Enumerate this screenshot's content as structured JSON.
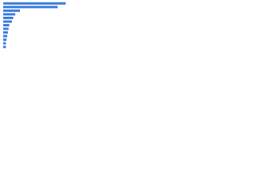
{
  "chart_data": {
    "type": "bar",
    "orientation": "horizontal",
    "categories": [
      null,
      null,
      null,
      null,
      null,
      null,
      null,
      null,
      null,
      null,
      null,
      null,
      null
    ],
    "values": [
      93,
      81,
      25,
      18,
      15,
      13,
      9,
      8,
      7,
      6,
      5,
      4,
      4
    ],
    "color": "#3b7ddd",
    "xlim": [
      0,
      100
    ]
  }
}
